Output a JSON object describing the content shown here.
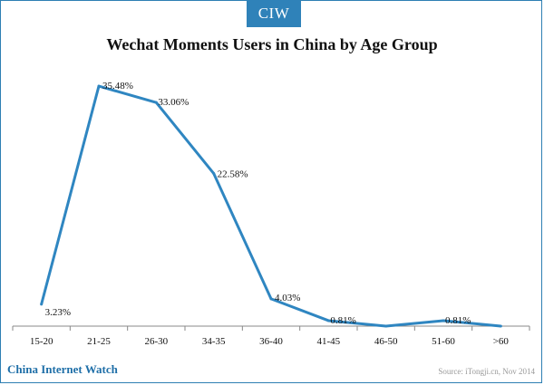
{
  "logo": {
    "text": "CIW"
  },
  "chart_data": {
    "type": "line",
    "title": "Wechat Moments Users in China by Age Group",
    "xlabel": "",
    "ylabel": "",
    "categories": [
      "15-20",
      "21-25",
      "26-30",
      "34-35",
      "36-40",
      "41-45",
      "46-50",
      "51-60",
      ">60"
    ],
    "values": [
      3.23,
      35.48,
      33.06,
      22.58,
      4.03,
      0.81,
      0.0,
      0.81,
      0.0
    ],
    "data_labels": [
      "3.23%",
      "35.48%",
      "33.06%",
      "22.58%",
      "4.03%",
      "0.81%",
      "",
      "0.81%",
      ""
    ],
    "ylim": [
      0,
      37.5
    ],
    "grid": false,
    "legend": "none",
    "line_color": "#2f86c1"
  },
  "footer": {
    "source_text": "China Internet Watch",
    "credit": "Source: iTongji.cn, Nov 2014"
  }
}
